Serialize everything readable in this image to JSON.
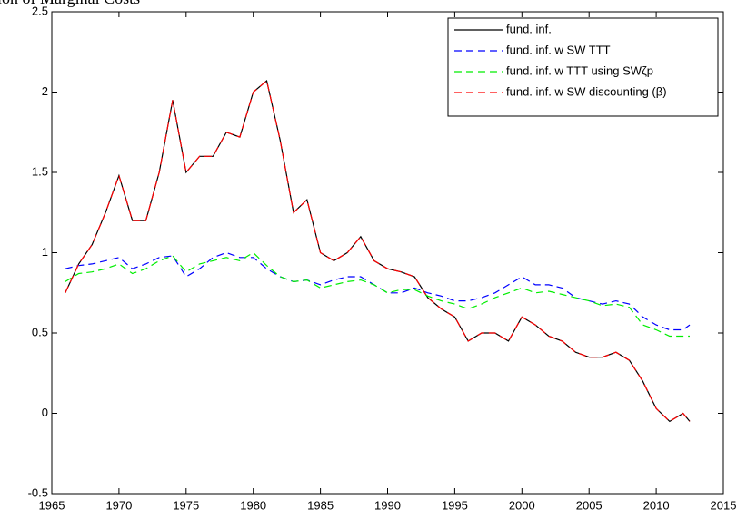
{
  "chart_data": {
    "type": "line",
    "title": "ation of Marginal Costs",
    "x": [
      1966,
      1967,
      1968,
      1969,
      1970,
      1971,
      1972,
      1973,
      1974,
      1975,
      1976,
      1977,
      1978,
      1979,
      1980,
      1981,
      1982,
      1983,
      1984,
      1985,
      1986,
      1987,
      1988,
      1989,
      1990,
      1991,
      1992,
      1993,
      1994,
      1995,
      1996,
      1997,
      1998,
      1999,
      2000,
      2001,
      2002,
      2003,
      2004,
      2005,
      2006,
      2007,
      2008,
      2009,
      2010,
      2011,
      2012,
      2012.5
    ],
    "series": [
      {
        "name": "fund. inf.",
        "color": "#000000",
        "dash": "none",
        "values": [
          0.75,
          0.93,
          1.05,
          1.25,
          1.48,
          1.2,
          1.2,
          1.5,
          1.95,
          1.5,
          1.6,
          1.6,
          1.75,
          1.72,
          2.0,
          2.07,
          1.7,
          1.25,
          1.33,
          1.0,
          0.95,
          1.0,
          1.1,
          0.95,
          0.9,
          0.88,
          0.85,
          0.72,
          0.65,
          0.6,
          0.45,
          0.5,
          0.5,
          0.45,
          0.6,
          0.55,
          0.48,
          0.45,
          0.38,
          0.35,
          0.35,
          0.38,
          0.33,
          0.2,
          0.03,
          -0.05,
          0.0,
          -0.05
        ]
      },
      {
        "name": "fund. inf. w SW TTT",
        "color": "#0000ff",
        "dash": "8,5",
        "values": [
          0.9,
          0.92,
          0.93,
          0.95,
          0.97,
          0.9,
          0.93,
          0.97,
          0.98,
          0.85,
          0.9,
          0.97,
          1.0,
          0.97,
          0.97,
          0.9,
          0.85,
          0.82,
          0.83,
          0.8,
          0.83,
          0.85,
          0.85,
          0.8,
          0.75,
          0.75,
          0.78,
          0.75,
          0.73,
          0.7,
          0.7,
          0.72,
          0.75,
          0.8,
          0.85,
          0.8,
          0.8,
          0.78,
          0.72,
          0.7,
          0.68,
          0.7,
          0.68,
          0.6,
          0.55,
          0.52,
          0.52,
          0.55
        ]
      },
      {
        "name": "fund. inf. w TTT using SWζp",
        "color": "#00ee00",
        "dash": "8,5",
        "values": [
          0.82,
          0.87,
          0.88,
          0.9,
          0.93,
          0.87,
          0.9,
          0.95,
          0.98,
          0.88,
          0.93,
          0.95,
          0.97,
          0.95,
          1.0,
          0.92,
          0.85,
          0.82,
          0.83,
          0.78,
          0.8,
          0.82,
          0.83,
          0.8,
          0.75,
          0.77,
          0.77,
          0.73,
          0.7,
          0.68,
          0.65,
          0.68,
          0.72,
          0.75,
          0.78,
          0.75,
          0.76,
          0.74,
          0.72,
          0.7,
          0.67,
          0.68,
          0.66,
          0.55,
          0.52,
          0.48,
          0.48,
          0.48
        ]
      },
      {
        "name": "fund. inf. w SW discounting (β)",
        "color": "#ff0000",
        "dash": "8,5",
        "values": [
          0.75,
          0.93,
          1.05,
          1.25,
          1.48,
          1.2,
          1.2,
          1.5,
          1.95,
          1.5,
          1.6,
          1.6,
          1.75,
          1.72,
          2.0,
          2.07,
          1.7,
          1.25,
          1.33,
          1.0,
          0.95,
          1.0,
          1.1,
          0.95,
          0.9,
          0.88,
          0.85,
          0.72,
          0.65,
          0.6,
          0.45,
          0.5,
          0.5,
          0.45,
          0.6,
          0.55,
          0.48,
          0.45,
          0.38,
          0.35,
          0.35,
          0.38,
          0.33,
          0.2,
          0.03,
          -0.05,
          0.0,
          -0.05
        ]
      }
    ],
    "xlim": [
      1965,
      2015
    ],
    "xticks": [
      1965,
      1970,
      1975,
      1980,
      1985,
      1990,
      1995,
      2000,
      2005,
      2010,
      2015
    ],
    "ylim": [
      -0.5,
      2.5
    ],
    "yticks": [
      -0.5,
      0,
      0.5,
      1,
      1.5,
      2,
      2.5
    ],
    "legend": "upper right",
    "grid": false
  }
}
